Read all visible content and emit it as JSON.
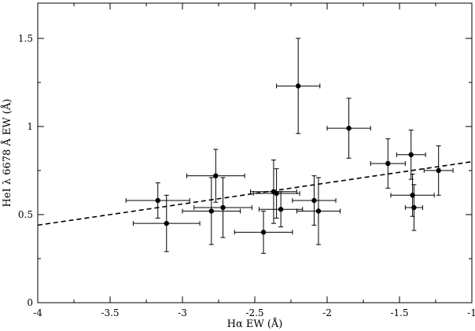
{
  "chart_data": {
    "type": "scatter",
    "xlabel": "Hα EW (Å)",
    "ylabel": "HeI  λ 6678 Å  EW (Å)",
    "xlim": [
      -4,
      -1
    ],
    "ylim": [
      0,
      1.7
    ],
    "x_ticks": [
      -4,
      -3.5,
      -3,
      -2.5,
      -2,
      -1.5,
      -1
    ],
    "x_tick_labels": [
      "-4",
      "-3.5",
      "-3",
      "-2.5",
      "-2",
      "-1.5",
      "-1"
    ],
    "y_ticks": [
      0,
      0.5,
      1,
      1.5
    ],
    "y_tick_labels": [
      "0",
      "0.5",
      "1",
      "1.5"
    ],
    "grid": false,
    "series": [
      {
        "points": [
          {
            "x": -3.17,
            "y": 0.58,
            "xerr": 0.22,
            "yerr": 0.1
          },
          {
            "x": -3.11,
            "y": 0.45,
            "xerr": 0.23,
            "yerr": 0.16
          },
          {
            "x": -2.8,
            "y": 0.52,
            "xerr": 0.2,
            "yerr": 0.19
          },
          {
            "x": -2.77,
            "y": 0.72,
            "xerr": 0.2,
            "yerr": 0.15
          },
          {
            "x": -2.72,
            "y": 0.54,
            "xerr": 0.2,
            "yerr": 0.17
          },
          {
            "x": -2.44,
            "y": 0.4,
            "xerr": 0.2,
            "yerr": 0.12
          },
          {
            "x": -2.37,
            "y": 0.63,
            "xerr": 0.16,
            "yerr": 0.18
          },
          {
            "x": -2.35,
            "y": 0.62,
            "xerr": 0.16,
            "yerr": 0.14
          },
          {
            "x": -2.32,
            "y": 0.53,
            "xerr": 0.15,
            "yerr": 0.1
          },
          {
            "x": -2.2,
            "y": 1.23,
            "xerr": 0.15,
            "yerr": 0.27
          },
          {
            "x": -2.09,
            "y": 0.58,
            "xerr": 0.15,
            "yerr": 0.14
          },
          {
            "x": -2.06,
            "y": 0.52,
            "xerr": 0.15,
            "yerr": 0.19
          },
          {
            "x": -1.85,
            "y": 0.99,
            "xerr": 0.15,
            "yerr": 0.17
          },
          {
            "x": -1.58,
            "y": 0.79,
            "xerr": 0.12,
            "yerr": 0.14
          },
          {
            "x": -1.42,
            "y": 0.84,
            "xerr": 0.1,
            "yerr": 0.14
          },
          {
            "x": -1.41,
            "y": 0.61,
            "xerr": 0.15,
            "yerr": 0.12
          },
          {
            "x": -1.4,
            "y": 0.54,
            "xerr": 0.06,
            "yerr": 0.13
          },
          {
            "x": -1.23,
            "y": 0.75,
            "xerr": 0.1,
            "yerr": 0.14
          }
        ]
      }
    ],
    "fit_line": {
      "x": [
        -4,
        -1
      ],
      "y": [
        0.44,
        0.8
      ],
      "style": "dashed"
    }
  }
}
